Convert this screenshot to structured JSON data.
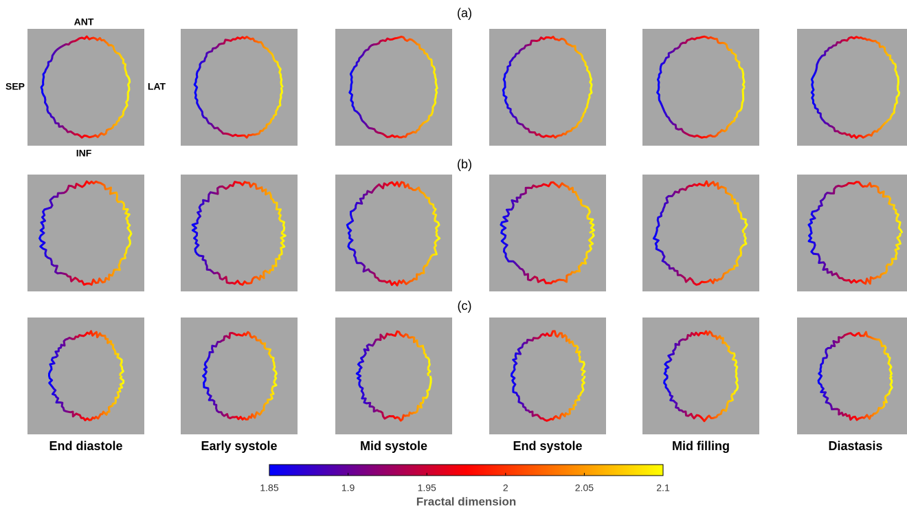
{
  "row_labels": [
    "(a)",
    "(b)",
    "(c)"
  ],
  "orientation_labels": {
    "anterior": "ANT",
    "septal": "SEP",
    "lateral": "LAT",
    "inferior": "INF"
  },
  "columns": [
    "End diastole",
    "Early systole",
    "Mid systole",
    "End systole",
    "Mid filling",
    "Diastasis"
  ],
  "colorbar": {
    "label": "Fractal dimension",
    "ticks": [
      "1.85",
      "1.9",
      "1.95",
      "2",
      "2.05",
      "2.1"
    ],
    "colors": [
      "#0000ff",
      "#ff0000",
      "#ffff00"
    ]
  }
}
